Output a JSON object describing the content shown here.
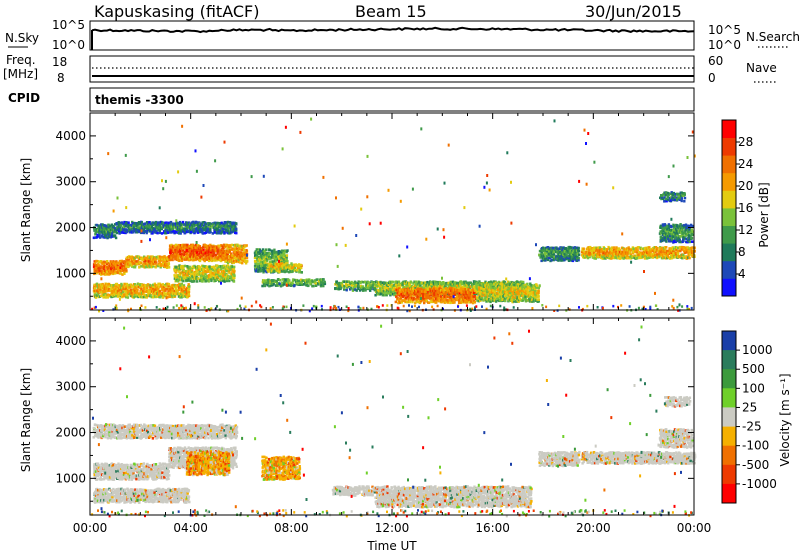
{
  "header": {
    "station": "Kapuskasing (fitACF)",
    "beam": "Beam 15",
    "date": "30/Jun/2015"
  },
  "top_panels": {
    "nsky_label": "N.Sky",
    "nsky_ticks": [
      "10^5",
      "10^0"
    ],
    "nsearch_label": "N.Search",
    "freq_label": "Freq.",
    "freq_unit": "[MHz]",
    "freq_ticks": [
      "18",
      "8"
    ],
    "nave_label": "Nave",
    "nave_ticks": [
      "60",
      "0"
    ],
    "cpid_label": "CPID",
    "cpid_value": "themis -3300"
  },
  "chart_data": [
    {
      "type": "heatmap",
      "title": "",
      "ylabel": "Slant Range [km]",
      "yticks": [
        "1000",
        "2000",
        "3000",
        "4000"
      ],
      "ylim": [
        200,
        4500
      ],
      "xlim": [
        0,
        24
      ],
      "colorbar": {
        "label": "Power [dB]",
        "ticks": [
          "4",
          "8",
          "12",
          "16",
          "20",
          "24",
          "28"
        ],
        "colors": [
          "#1010ff",
          "#1d48b8",
          "#1f7a5a",
          "#3f9a4a",
          "#7ac23a",
          "#e3cb10",
          "#f59a00",
          "#f07000",
          "#ee3a00",
          "#ff0000"
        ]
      },
      "regions": [
        {
          "t0": 0.1,
          "t1": 1.4,
          "r0": 1000,
          "r1": 1300,
          "level": 20
        },
        {
          "t0": 1.4,
          "t1": 3.1,
          "r0": 1150,
          "r1": 1400,
          "level": 17
        },
        {
          "t0": 3.1,
          "t1": 5.3,
          "r0": 1300,
          "r1": 1650,
          "level": 21
        },
        {
          "t0": 5.3,
          "t1": 6.2,
          "r0": 1250,
          "r1": 1650,
          "level": 18
        },
        {
          "t0": 0.1,
          "t1": 3.9,
          "r0": 500,
          "r1": 800,
          "level": 16
        },
        {
          "t0": 3.3,
          "t1": 5.7,
          "r0": 850,
          "r1": 1200,
          "level": 13
        },
        {
          "t0": 0.1,
          "t1": 1.0,
          "r0": 1800,
          "r1": 2100,
          "level": 5
        },
        {
          "t0": 1.0,
          "t1": 5.8,
          "r0": 1900,
          "r1": 2150,
          "level": 4
        },
        {
          "t0": 6.5,
          "t1": 7.8,
          "r0": 1050,
          "r1": 1550,
          "level": 9
        },
        {
          "t0": 7.0,
          "t1": 8.4,
          "r0": 1050,
          "r1": 1250,
          "level": 14
        },
        {
          "t0": 6.8,
          "t1": 9.3,
          "r0": 750,
          "r1": 900,
          "level": 9
        },
        {
          "t0": 9.7,
          "t1": 11.3,
          "r0": 650,
          "r1": 850,
          "level": 9
        },
        {
          "t0": 11.3,
          "t1": 17.2,
          "r0": 550,
          "r1": 850,
          "level": 11
        },
        {
          "t0": 12.1,
          "t1": 15.3,
          "r0": 380,
          "r1": 700,
          "level": 20
        },
        {
          "t0": 15.3,
          "t1": 17.8,
          "r0": 400,
          "r1": 800,
          "level": 13
        },
        {
          "t0": 17.8,
          "t1": 19.4,
          "r0": 1300,
          "r1": 1600,
          "level": 6
        },
        {
          "t0": 19.5,
          "t1": 24.0,
          "r0": 1350,
          "r1": 1600,
          "level": 16
        },
        {
          "t0": 22.6,
          "t1": 23.9,
          "r0": 1700,
          "r1": 2100,
          "level": 6
        },
        {
          "t0": 22.6,
          "t1": 23.6,
          "r0": 2600,
          "r1": 2800,
          "level": 5
        }
      ]
    },
    {
      "type": "heatmap",
      "title": "",
      "xlabel": "Time UT",
      "ylabel": "Slant Range [km]",
      "xticks": [
        "00:00",
        "04:00",
        "08:00",
        "12:00",
        "16:00",
        "20:00",
        "00:00"
      ],
      "yticks": [
        "1000",
        "2000",
        "3000",
        "4000"
      ],
      "ylim": [
        200,
        4500
      ],
      "xlim": [
        0,
        24
      ],
      "colorbar": {
        "label": "Velocity [m s⁻¹]",
        "ticks": [
          "1000",
          "500",
          "100",
          "25",
          "-25",
          "-100",
          "-500",
          "-1000"
        ],
        "colors": [
          "#1a3fa8",
          "#2a7c5c",
          "#3c9a3c",
          "#6fd02a",
          "#cbcbc3",
          "#f5b000",
          "#f07000",
          "#ee3a00",
          "#ff0000"
        ]
      },
      "regions": [
        {
          "t0": 0.1,
          "t1": 3.1,
          "r0": 1000,
          "r1": 1350,
          "level": 0
        },
        {
          "t0": 3.1,
          "t1": 5.8,
          "r0": 1250,
          "r1": 1700,
          "level": 0
        },
        {
          "t0": 3.8,
          "t1": 5.5,
          "r0": 1100,
          "r1": 1600,
          "level": -150
        },
        {
          "t0": 0.1,
          "t1": 3.9,
          "r0": 500,
          "r1": 800,
          "level": 0
        },
        {
          "t0": 0.1,
          "t1": 5.8,
          "r0": 1900,
          "r1": 2200,
          "level": 0
        },
        {
          "t0": 6.8,
          "t1": 8.3,
          "r0": 1000,
          "r1": 1500,
          "level": -150
        },
        {
          "t0": 9.6,
          "t1": 11.3,
          "r0": 650,
          "r1": 850,
          "level": 0
        },
        {
          "t0": 11.3,
          "t1": 17.5,
          "r0": 400,
          "r1": 850,
          "level": 0
        },
        {
          "t0": 17.8,
          "t1": 19.4,
          "r0": 1300,
          "r1": 1600,
          "level": 0
        },
        {
          "t0": 19.5,
          "t1": 24.0,
          "r0": 1350,
          "r1": 1600,
          "level": 0
        },
        {
          "t0": 22.6,
          "t1": 23.9,
          "r0": 1700,
          "r1": 2100,
          "level": 0
        },
        {
          "t0": 22.8,
          "t1": 23.8,
          "r0": 2600,
          "r1": 2800,
          "level": 0
        }
      ]
    }
  ]
}
